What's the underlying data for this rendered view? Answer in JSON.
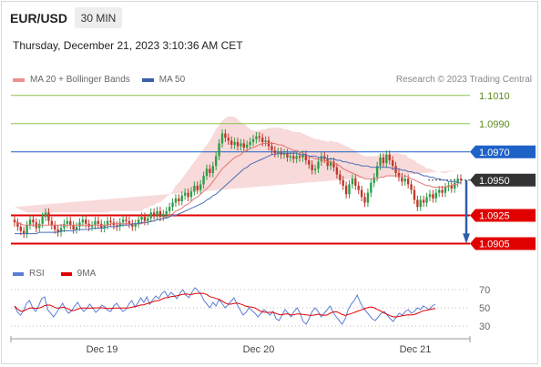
{
  "header": {
    "symbol": "EUR/USD",
    "timeframe": "30 MIN",
    "datetime": "Thursday, December 21, 2023 3:10:36 AM CET"
  },
  "legend": {
    "bollinger": "MA 20 + Bollinger Bands",
    "ma50": "MA 50",
    "credit": "Research © 2023 Trading Central",
    "rsi": "RSI",
    "ma9": "9MA"
  },
  "colors": {
    "bullish": "#2e9e49",
    "bearish": "#c0392b",
    "bollinger_fill": "#f5c6c6",
    "ma20": "#e57373",
    "ma50": "#4a6fb5",
    "resistance": "#1e62c8",
    "support": "#e10000",
    "target_green": "#8bc34a",
    "current": "#333333",
    "rsi": "#5b7fd6",
    "rsi_ma": "#e10000"
  },
  "chart_data": {
    "type": "candlestick",
    "x_labels": [
      "Dec 19",
      "Dec 20",
      "Dec 21"
    ],
    "y_range": [
      1.0895,
      1.1015
    ],
    "levels": [
      {
        "value": "1.1010",
        "kind": "target"
      },
      {
        "value": "1.0990",
        "kind": "target"
      },
      {
        "value": "1.0970",
        "kind": "resistance"
      },
      {
        "value": "1.0950",
        "kind": "current"
      },
      {
        "value": "1.0925",
        "kind": "support"
      },
      {
        "value": "1.0905",
        "kind": "support"
      }
    ],
    "close": [
      1.092,
      1.0917,
      1.0914,
      1.0912,
      1.0918,
      1.0922,
      1.092,
      1.0916,
      1.0919,
      1.0924,
      1.0927,
      1.0921,
      1.0918,
      1.0915,
      1.0913,
      1.0916,
      1.0919,
      1.0921,
      1.0918,
      1.0915,
      1.0917,
      1.092,
      1.0922,
      1.0919,
      1.0917,
      1.0918,
      1.0921,
      1.0919,
      1.0916,
      1.0918,
      1.0921,
      1.092,
      1.0918,
      1.0917,
      1.092,
      1.0922,
      1.0921,
      1.0919,
      1.0917,
      1.0919,
      1.0922,
      1.0924,
      1.0921,
      1.0923,
      1.0927,
      1.0925,
      1.0928,
      1.0924,
      1.0926,
      1.0928,
      1.0931,
      1.0934,
      1.0937,
      1.0935,
      1.0939,
      1.0941,
      1.0938,
      1.0942,
      1.0946,
      1.0943,
      1.0947,
      1.0953,
      1.0958,
      1.0955,
      1.096,
      1.0967,
      1.0976,
      1.0983,
      1.098,
      1.0978,
      1.0975,
      1.0977,
      1.0974,
      1.0976,
      1.0973,
      1.0975,
      1.0977,
      1.0979,
      1.0981,
      1.098,
      1.0977,
      1.0978,
      1.0974,
      1.0971,
      1.0969,
      1.097,
      1.0968,
      1.0969,
      1.0966,
      1.0967,
      1.0965,
      1.0967,
      1.0966,
      1.0968,
      1.0964,
      1.0961,
      1.0957,
      1.0958,
      1.0963,
      1.0967,
      1.0965,
      1.096,
      1.0963,
      1.0959,
      1.0954,
      1.095,
      1.0946,
      1.094,
      1.0947,
      1.0951,
      1.0946,
      1.0943,
      1.0938,
      1.0934,
      1.0941,
      1.0948,
      1.0952,
      1.096,
      1.0966,
      1.0962,
      1.0968,
      1.0964,
      1.096,
      1.0955,
      1.0952,
      1.0949,
      1.0951,
      1.0947,
      1.0943,
      1.0936,
      1.0931,
      1.0936,
      1.0934,
      1.0938,
      1.094,
      1.0937,
      1.0941,
      1.0943,
      1.0941,
      1.0945,
      1.0946,
      1.0944,
      1.0948,
      1.0951,
      1.095
    ],
    "ma20": [
      1.0921,
      1.092,
      1.0919,
      1.0918,
      1.0918,
      1.0918,
      1.0918,
      1.0918,
      1.0918,
      1.0918,
      1.0918,
      1.0918,
      1.0918,
      1.0918,
      1.0918,
      1.0918,
      1.0918,
      1.0918,
      1.0918,
      1.0918,
      1.0918,
      1.0918,
      1.0918,
      1.0918,
      1.0918,
      1.0918,
      1.0918,
      1.0918,
      1.0918,
      1.0918,
      1.0918,
      1.0919,
      1.0919,
      1.0919,
      1.0919,
      1.0919,
      1.0919,
      1.0919,
      1.0919,
      1.0919,
      1.0919,
      1.0919,
      1.092,
      1.092,
      1.0921,
      1.0921,
      1.0922,
      1.0922,
      1.0923,
      1.0924,
      1.0925,
      1.0926,
      1.0928,
      1.0929,
      1.093,
      1.0932,
      1.0933,
      1.0935,
      1.0937,
      1.0938,
      1.094,
      1.0942,
      1.0944,
      1.0946,
      1.0949,
      1.0952,
      1.0955,
      1.0958,
      1.096,
      1.0962,
      1.0964,
      1.0966,
      1.0967,
      1.0968,
      1.097,
      1.0971,
      1.0972,
      1.0973,
      1.0974,
      1.0975,
      1.0976,
      1.0976,
      1.0976,
      1.0976,
      1.0976,
      1.0975,
      1.0975,
      1.0974,
      1.0973,
      1.0972,
      1.0971,
      1.0971,
      1.097,
      1.0969,
      1.0968,
      1.0967,
      1.0966,
      1.0965,
      1.0965,
      1.0964,
      1.0964,
      1.0963,
      1.0963,
      1.0962,
      1.0961,
      1.096,
      1.0958,
      1.0957,
      1.0956,
      1.0955,
      1.0954,
      1.0953,
      1.0952,
      1.0951,
      1.0951,
      1.0951,
      1.0951,
      1.0951,
      1.0952,
      1.0952,
      1.0953,
      1.0953,
      1.0953,
      1.0953,
      1.0953,
      1.0953,
      1.0953,
      1.0952,
      1.0951,
      1.095,
      1.0949,
      1.0948,
      1.0947,
      1.0946,
      1.0946,
      1.0945,
      1.0945,
      1.0945,
      1.0945,
      1.0945,
      1.0946,
      1.0946,
      1.0947,
      1.0947
    ],
    "ma50": [
      1.0912,
      1.0912,
      1.0912,
      1.0912,
      1.0912,
      1.0912,
      1.0912,
      1.0912,
      1.0913,
      1.0913,
      1.0913,
      1.0913,
      1.0913,
      1.0913,
      1.0913,
      1.0914,
      1.0914,
      1.0914,
      1.0914,
      1.0914,
      1.0915,
      1.0915,
      1.0915,
      1.0915,
      1.0915,
      1.0916,
      1.0916,
      1.0916,
      1.0916,
      1.0916,
      1.0917,
      1.0917,
      1.0917,
      1.0917,
      1.0918,
      1.0918,
      1.0918,
      1.0918,
      1.0919,
      1.0919,
      1.0919,
      1.092,
      1.092,
      1.092,
      1.0921,
      1.0921,
      1.0922,
      1.0922,
      1.0923,
      1.0923,
      1.0924,
      1.0925,
      1.0925,
      1.0926,
      1.0927,
      1.0928,
      1.0929,
      1.093,
      1.0931,
      1.0932,
      1.0933,
      1.0934,
      1.0936,
      1.0937,
      1.0939,
      1.094,
      1.0942,
      1.0944,
      1.0946,
      1.0948,
      1.095,
      1.0952,
      1.0954,
      1.0956,
      1.0958,
      1.0959,
      1.0961,
      1.0962,
      1.0963,
      1.0964,
      1.0965,
      1.0966,
      1.0967,
      1.0968,
      1.0968,
      1.0969,
      1.0969,
      1.0969,
      1.0969,
      1.0969,
      1.0969,
      1.0969,
      1.0968,
      1.0968,
      1.0968,
      1.0967,
      1.0967,
      1.0967,
      1.0966,
      1.0966,
      1.0966,
      1.0965,
      1.0965,
      1.0965,
      1.0964,
      1.0964,
      1.0963,
      1.0963,
      1.0962,
      1.0962,
      1.0961,
      1.0961,
      1.096,
      1.096,
      1.096,
      1.0959,
      1.0959,
      1.0959,
      1.0959,
      1.0959,
      1.0959,
      1.0959,
      1.0958,
      1.0958,
      1.0958,
      1.0957,
      1.0957,
      1.0956,
      1.0956,
      1.0955,
      1.0955,
      1.0954,
      1.0953,
      1.0953,
      1.0952,
      1.0952,
      1.0951,
      1.0951,
      1.095,
      1.095,
      1.0949,
      1.0949,
      1.0949,
      1.0948,
      1.0948
    ],
    "bb_width": [
      0.001,
      0.001,
      0.001,
      0.001,
      0.0009,
      0.0009,
      0.0009,
      0.0009,
      0.0009,
      0.0009,
      0.0009,
      0.0009,
      0.0009,
      0.0009,
      0.0009,
      0.0009,
      0.0009,
      0.0009,
      0.0009,
      0.0009,
      0.0009,
      0.0009,
      0.0009,
      0.0009,
      0.0009,
      0.0009,
      0.0009,
      0.0009,
      0.0009,
      0.0009,
      0.0009,
      0.0009,
      0.0009,
      0.0009,
      0.0009,
      0.0009,
      0.0009,
      0.0009,
      0.0009,
      0.0009,
      0.0009,
      0.0009,
      0.001,
      0.001,
      0.0011,
      0.0011,
      0.0012,
      0.0012,
      0.0013,
      0.0014,
      0.0015,
      0.0016,
      0.0018,
      0.0019,
      0.0021,
      0.0022,
      0.0024,
      0.0025,
      0.0026,
      0.0028,
      0.0029,
      0.003,
      0.0031,
      0.0032,
      0.0033,
      0.0034,
      0.0034,
      0.0034,
      0.0034,
      0.0033,
      0.0031,
      0.0029,
      0.0026,
      0.0023,
      0.002,
      0.0017,
      0.0014,
      0.0012,
      0.0011,
      0.001,
      0.001,
      0.001,
      0.0011,
      0.0011,
      0.0011,
      0.0012,
      0.0012,
      0.0012,
      0.0013,
      0.0013,
      0.0013,
      0.0013,
      0.0014,
      0.0014,
      0.0014,
      0.0014,
      0.0014,
      0.0014,
      0.0014,
      0.0014,
      0.0014,
      0.0014,
      0.0015,
      0.0015,
      0.0016,
      0.0016,
      0.0017,
      0.0017,
      0.0017,
      0.0017,
      0.0017,
      0.0016,
      0.0016,
      0.0016,
      0.0016,
      0.0016,
      0.0016,
      0.0016,
      0.0016,
      0.0016,
      0.0016,
      0.0016,
      0.0016,
      0.0016,
      0.0016,
      0.0015,
      0.0015,
      0.0014,
      0.0014,
      0.0014,
      0.0013,
      0.0013,
      0.0013,
      0.0012,
      0.0012,
      0.0012,
      0.0011,
      0.0011,
      0.001,
      0.001,
      0.001,
      0.001,
      0.001,
      0.001
    ],
    "projection": {
      "from": 1.095,
      "to": 1.0905
    },
    "rsi": {
      "ticks": [
        "70",
        "50",
        "30"
      ],
      "values": [
        52,
        45,
        42,
        47,
        55,
        58,
        50,
        46,
        52,
        60,
        62,
        48,
        44,
        40,
        45,
        50,
        55,
        48,
        44,
        47,
        52,
        56,
        50,
        46,
        49,
        54,
        50,
        45,
        48,
        53,
        51,
        47,
        46,
        52,
        55,
        50,
        46,
        48,
        54,
        58,
        51,
        55,
        61,
        56,
        62,
        54,
        59,
        63,
        60,
        66,
        68,
        62,
        67,
        64,
        60,
        66,
        70,
        64,
        61,
        67,
        72,
        69,
        65,
        58,
        54,
        50,
        56,
        52,
        59,
        55,
        50,
        53,
        57,
        61,
        54,
        48,
        42,
        45,
        50,
        47,
        44,
        40,
        44,
        48,
        45,
        42,
        46,
        38,
        36,
        42,
        48,
        44,
        40,
        46,
        50,
        44,
        35,
        32,
        38,
        46,
        50,
        46,
        40,
        44,
        48,
        52,
        45,
        40,
        36,
        32,
        38,
        48,
        54,
        58,
        64,
        56,
        50,
        46,
        42,
        38,
        36,
        40,
        44,
        46,
        42,
        38,
        35,
        40,
        44,
        42,
        46,
        48,
        44,
        46,
        50,
        48,
        52,
        50,
        48,
        52,
        54
      ]
    }
  }
}
